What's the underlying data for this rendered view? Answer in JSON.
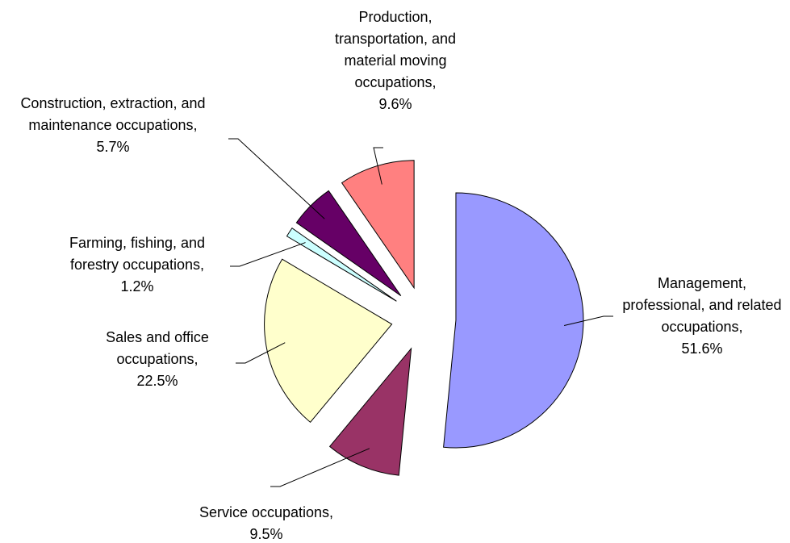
{
  "chart_data": {
    "type": "pie",
    "categories": [
      "Management, professional, and related occupations,",
      "Service occupations,",
      "Sales and office occupations,",
      "Farming, fishing, and forestry occupations,",
      "Construction, extraction, and maintenance occupations,",
      "Production, transportation, and material moving occupations,"
    ],
    "values": [
      51.6,
      9.5,
      22.5,
      1.2,
      5.7,
      9.6
    ],
    "value_labels": [
      "51.6%",
      "9.5%",
      "22.5%",
      "1.2%",
      "5.7%",
      "9.6%"
    ],
    "colors": [
      "#9999ff",
      "#993366",
      "#ffffcc",
      "#ccffff",
      "#660066",
      "#ff8080"
    ]
  }
}
